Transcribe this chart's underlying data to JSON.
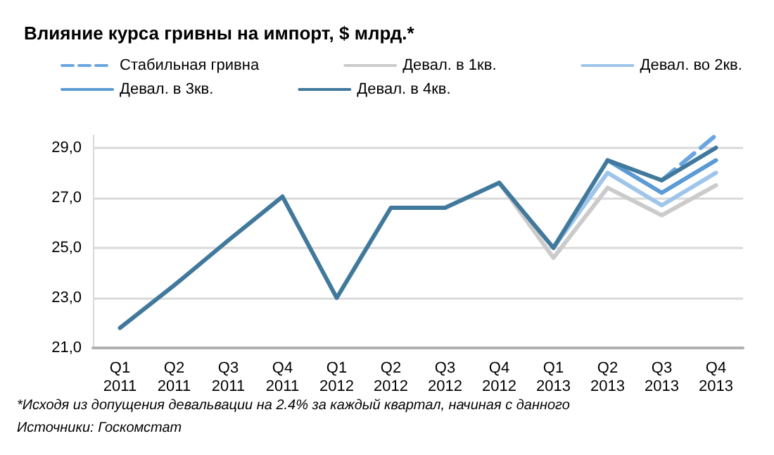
{
  "chart_data": {
    "type": "line",
    "title": "Влияние курса гривны на импорт, $ млрд.*",
    "categories": [
      "Q1\n2011",
      "Q2\n2011",
      "Q3\n2011",
      "Q4\n2011",
      "Q1\n2012",
      "Q2\n2012",
      "Q3\n2012",
      "Q4\n2012",
      "Q1\n2013",
      "Q2\n2013",
      "Q3\n2013",
      "Q4\n2013"
    ],
    "series": [
      {
        "name": "Стабильная гривна",
        "color": "#6aa6e0",
        "line_style": "dashed",
        "values": [
          null,
          null,
          null,
          null,
          null,
          null,
          null,
          null,
          null,
          null,
          27.7,
          29.5
        ]
      },
      {
        "name": "Девал. в 1кв.",
        "color": "#cbcbcb",
        "values": [
          null,
          null,
          null,
          null,
          null,
          null,
          null,
          27.6,
          24.6,
          27.4,
          26.3,
          27.5
        ]
      },
      {
        "name": "Девал. во 2кв.",
        "color": "#9fc5ea",
        "values": [
          null,
          null,
          null,
          null,
          null,
          null,
          null,
          null,
          25.0,
          28.0,
          26.7,
          28.0
        ]
      },
      {
        "name": "Девал. в 3кв.",
        "color": "#5b9bd5",
        "values": [
          null,
          null,
          null,
          null,
          null,
          null,
          null,
          null,
          null,
          28.5,
          27.2,
          28.5
        ]
      },
      {
        "name": "Девал. в 4кв.",
        "color": "#41799c",
        "values": [
          21.8,
          23.5,
          25.3,
          27.05,
          23.0,
          26.6,
          26.6,
          27.6,
          25.0,
          28.5,
          27.7,
          29.0
        ]
      }
    ],
    "ylim": [
      21,
      29.5
    ],
    "yticks": [
      {
        "value": 21,
        "label": "21,0"
      },
      {
        "value": 23,
        "label": "23,0"
      },
      {
        "value": 25,
        "label": "25,0"
      },
      {
        "value": 27,
        "label": "27,0"
      },
      {
        "value": 29,
        "label": "29,0"
      }
    ],
    "grid": "y",
    "legend": "top",
    "line_style": "solid",
    "marker": "none",
    "annotations": [
      "*Исходя из допущения девальвации на 2.4% за каждый квартал, начиная с данного",
      "Источники: Госкомстат"
    ]
  }
}
